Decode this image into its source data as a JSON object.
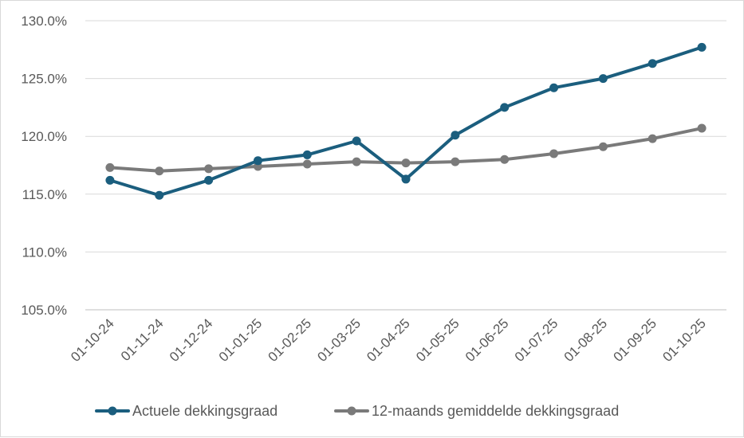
{
  "chart_data": {
    "type": "line",
    "title": "",
    "xlabel": "",
    "ylabel": "",
    "categories": [
      "01-10-24",
      "01-11-24",
      "01-12-24",
      "01-01-25",
      "01-02-25",
      "01-03-25",
      "01-04-25",
      "01-05-25",
      "01-06-25",
      "01-07-25",
      "01-08-25",
      "01-09-25",
      "01-10-25"
    ],
    "ylim": [
      105,
      130
    ],
    "yticks": [
      105,
      110,
      115,
      120,
      125,
      130
    ],
    "ytick_labels": [
      "105.0%",
      "110.0%",
      "115.0%",
      "120.0%",
      "125.0%",
      "130.0%"
    ],
    "grid": "horizontal",
    "legend_position": "bottom",
    "series": [
      {
        "name": "Actuele dekkingsgraad",
        "color": "#1b5e7e",
        "values": [
          116.2,
          114.9,
          116.2,
          117.9,
          118.4,
          119.6,
          116.3,
          120.1,
          122.5,
          124.2,
          125.0,
          126.3,
          127.7
        ]
      },
      {
        "name": "12-maands gemiddelde dekkingsgraad",
        "color": "#7a7a7a",
        "values": [
          117.3,
          117.0,
          117.2,
          117.4,
          117.6,
          117.8,
          117.7,
          117.8,
          118.0,
          118.5,
          119.1,
          119.8,
          120.7
        ]
      }
    ]
  }
}
